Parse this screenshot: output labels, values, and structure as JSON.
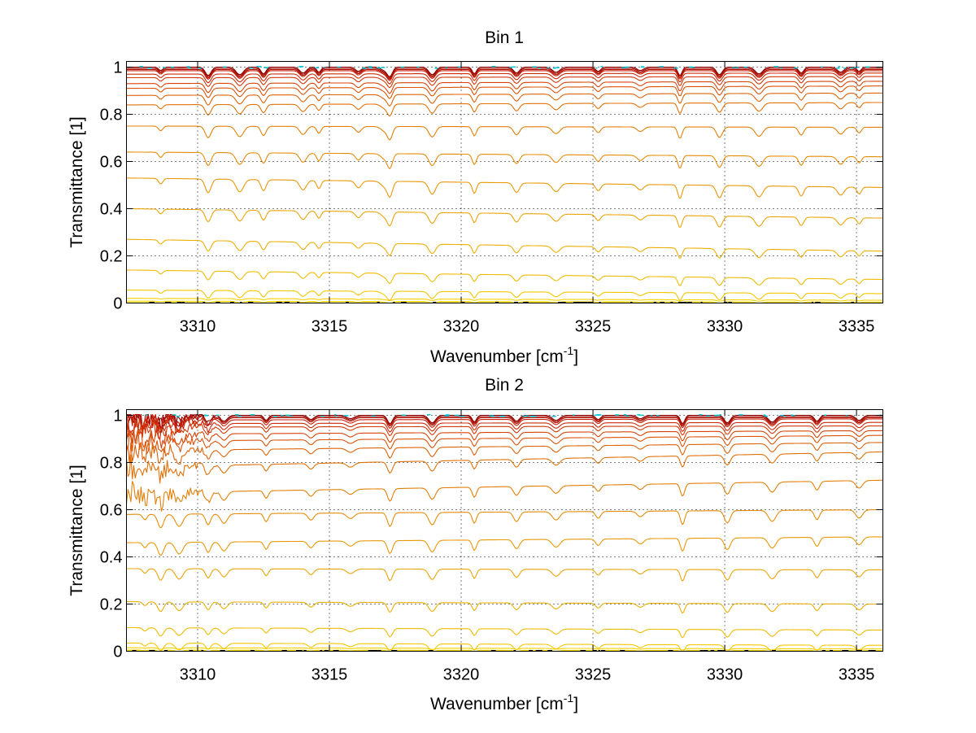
{
  "chart_data": [
    {
      "type": "line",
      "title": "Bin 1",
      "xlabel": "Wavenumber [cm",
      "xlabel_sup": "-1",
      "xlabel_end": "]",
      "ylabel": "Transmittance [1]",
      "xlim": [
        3307.3,
        3336.0
      ],
      "ylim": [
        0,
        1
      ],
      "xticks": [
        3310,
        3315,
        3320,
        3325,
        3330,
        3335
      ],
      "yticks": [
        0,
        0.2,
        0.4,
        0.6,
        0.8,
        1
      ],
      "xtick_labels": [
        "3310",
        "3315",
        "3320",
        "3325",
        "3330",
        "3335"
      ],
      "ytick_labels": [
        "0",
        "0.2",
        "0.4",
        "0.6",
        "0.8",
        "1"
      ],
      "grid": true,
      "colormap": [
        "#8b0000",
        "#c8200a",
        "#d84a0a",
        "#e07a0a",
        "#eaa00a",
        "#f2c400",
        "#ffe400",
        "#00c8d8"
      ],
      "absorption_lines": [
        3308.6,
        3310.4,
        3311.6,
        3312.5,
        3314.0,
        3314.6,
        3316.1,
        3317.1,
        3317.3,
        3318.9,
        3320.5,
        3322.1,
        3323.6,
        3325.2,
        3326.8,
        3328.3,
        3329.8,
        3331.3,
        3332.9,
        3334.4,
        3335.1
      ],
      "series": [
        {
          "values": [
            1.0,
            1.0
          ]
        },
        {
          "values": [
            0.995,
            0.995
          ]
        },
        {
          "values": [
            0.99,
            0.99
          ]
        },
        {
          "values": [
            0.985,
            0.985
          ]
        },
        {
          "values": [
            0.97,
            0.975
          ]
        },
        {
          "values": [
            0.955,
            0.96
          ]
        },
        {
          "values": [
            0.93,
            0.94
          ]
        },
        {
          "values": [
            0.91,
            0.92
          ]
        },
        {
          "values": [
            0.88,
            0.89
          ]
        },
        {
          "values": [
            0.84,
            0.85
          ]
        },
        {
          "values": [
            0.75,
            0.745
          ]
        },
        {
          "values": [
            0.64,
            0.62
          ]
        },
        {
          "values": [
            0.53,
            0.49
          ]
        },
        {
          "values": [
            0.4,
            0.36
          ]
        },
        {
          "values": [
            0.27,
            0.22
          ]
        },
        {
          "values": [
            0.14,
            0.1
          ]
        },
        {
          "values": [
            0.055,
            0.04
          ]
        },
        {
          "values": [
            0.02,
            0.012
          ]
        },
        {
          "values": [
            0.008,
            0.004
          ]
        },
        {
          "values": [
            0.002,
            0.001
          ]
        }
      ]
    },
    {
      "type": "line",
      "title": "Bin 2",
      "xlabel": "Wavenumber [cm",
      "xlabel_sup": "-1",
      "xlabel_end": "]",
      "ylabel": "Transmittance [1]",
      "xlim": [
        3307.3,
        3336.0
      ],
      "ylim": [
        0,
        1
      ],
      "xticks": [
        3310,
        3315,
        3320,
        3325,
        3330,
        3335
      ],
      "yticks": [
        0,
        0.2,
        0.4,
        0.6,
        0.8,
        1
      ],
      "xtick_labels": [
        "3310",
        "3315",
        "3320",
        "3325",
        "3330",
        "3335"
      ],
      "ytick_labels": [
        "0",
        "0.2",
        "0.4",
        "0.6",
        "0.8",
        "1"
      ],
      "grid": true,
      "colormap": [
        "#8b0000",
        "#c8200a",
        "#d84a0a",
        "#e07a0a",
        "#eaa00a",
        "#f2c400",
        "#ffe400",
        "#00c8d8"
      ],
      "absorption_lines": [
        3308.0,
        3308.6,
        3309.3,
        3310.4,
        3311.0,
        3312.6,
        3314.3,
        3315.8,
        3317.3,
        3318.9,
        3320.5,
        3322.1,
        3323.6,
        3325.2,
        3326.8,
        3328.4,
        3330.1,
        3331.8,
        3333.5,
        3335.1
      ],
      "series": [
        {
          "values": [
            1.0,
            1.0
          ]
        },
        {
          "values": [
            0.995,
            0.995
          ]
        },
        {
          "values": [
            0.99,
            0.99
          ]
        },
        {
          "values": [
            0.98,
            0.985
          ]
        },
        {
          "values": [
            0.965,
            0.97
          ]
        },
        {
          "values": [
            0.95,
            0.955
          ]
        },
        {
          "values": [
            0.92,
            0.935
          ]
        },
        {
          "values": [
            0.89,
            0.915
          ]
        },
        {
          "values": [
            0.85,
            0.885
          ]
        },
        {
          "values": [
            0.78,
            0.845
          ]
        },
        {
          "values": [
            0.67,
            0.725
          ]
        },
        {
          "values": [
            0.58,
            0.6
          ]
        },
        {
          "values": [
            0.46,
            0.485
          ]
        },
        {
          "values": [
            0.35,
            0.345
          ]
        },
        {
          "values": [
            0.21,
            0.2
          ]
        },
        {
          "values": [
            0.1,
            0.09
          ]
        },
        {
          "values": [
            0.035,
            0.025
          ]
        },
        {
          "values": [
            0.015,
            0.01
          ]
        },
        {
          "values": [
            0.005,
            0.003
          ]
        },
        {
          "values": [
            0.001,
            0.001
          ]
        }
      ]
    }
  ]
}
